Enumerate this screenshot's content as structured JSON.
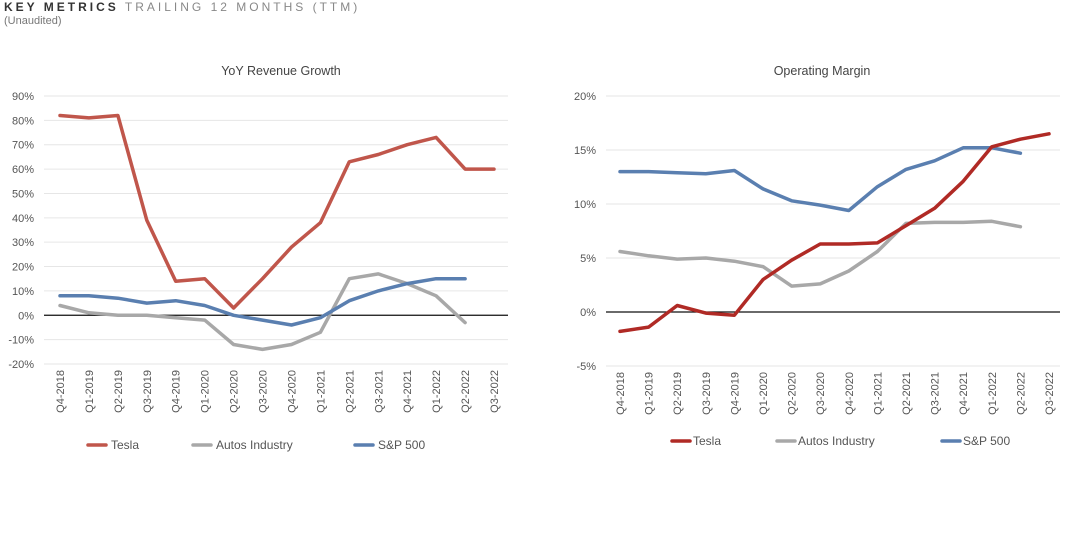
{
  "header": {
    "title_bold": "KEY METRICS",
    "title_light": "TRAILING 12 MONTHS (TTM)",
    "subtitle": "(Unaudited)"
  },
  "colors": {
    "tesla_left": "#c0564b",
    "tesla_right": "#b02a25",
    "autos": "#a8a8a8",
    "sp500": "#5a7fb0",
    "grid": "#e6e6e6",
    "zero": "#111111"
  },
  "chart_data": [
    {
      "type": "line",
      "title": "YoY Revenue Growth",
      "categories": [
        "Q4-2018",
        "Q1-2019",
        "Q2-2019",
        "Q3-2019",
        "Q4-2019",
        "Q1-2020",
        "Q2-2020",
        "Q3-2020",
        "Q4-2020",
        "Q1-2021",
        "Q2-2021",
        "Q3-2021",
        "Q4-2021",
        "Q1-2022",
        "Q2-2022",
        "Q3-2022"
      ],
      "y_ticks": [
        90,
        80,
        70,
        60,
        50,
        40,
        30,
        20,
        10,
        0,
        -10,
        -20
      ],
      "y_tick_labels": [
        "90%",
        "80%",
        "70%",
        "60%",
        "50%",
        "40%",
        "30%",
        "20%",
        "10%",
        "0%",
        "-10%",
        "-20%"
      ],
      "ylim": [
        -20,
        90
      ],
      "grid": true,
      "legend_position": "bottom",
      "series": [
        {
          "name": "Tesla",
          "color": "#c0564b",
          "values": [
            82,
            81,
            82,
            39,
            14,
            15,
            3,
            15,
            28,
            38,
            63,
            66,
            70,
            73,
            60,
            60
          ]
        },
        {
          "name": "Autos Industry",
          "color": "#a8a8a8",
          "values": [
            4,
            1,
            0,
            0,
            -1,
            -2,
            -12,
            -14,
            -12,
            -7,
            15,
            17,
            13,
            8,
            -3,
            null
          ]
        },
        {
          "name": "S&P 500",
          "color": "#5a7fb0",
          "values": [
            8,
            8,
            7,
            5,
            6,
            4,
            0,
            -2,
            -4,
            -1,
            6,
            10,
            13,
            15,
            15,
            null
          ]
        }
      ]
    },
    {
      "type": "line",
      "title": "Operating Margin",
      "categories": [
        "Q4-2018",
        "Q1-2019",
        "Q2-2019",
        "Q3-2019",
        "Q4-2019",
        "Q1-2020",
        "Q2-2020",
        "Q3-2020",
        "Q4-2020",
        "Q1-2021",
        "Q2-2021",
        "Q3-2021",
        "Q4-2021",
        "Q1-2022",
        "Q2-2022",
        "Q3-2022"
      ],
      "y_ticks": [
        20,
        15,
        10,
        5,
        0,
        -5
      ],
      "y_tick_labels": [
        "20%",
        "15%",
        "10%",
        "5%",
        "0%",
        "-5%"
      ],
      "ylim": [
        -5,
        20
      ],
      "grid": true,
      "legend_position": "bottom",
      "series": [
        {
          "name": "Tesla",
          "color": "#b02a25",
          "values": [
            -1.8,
            -1.4,
            0.6,
            -0.1,
            -0.3,
            3.0,
            4.8,
            6.3,
            6.3,
            6.4,
            8.0,
            9.6,
            12.1,
            15.3,
            16.0,
            16.5
          ]
        },
        {
          "name": "Autos Industry",
          "color": "#a8a8a8",
          "values": [
            5.6,
            5.2,
            4.9,
            5.0,
            4.7,
            4.2,
            2.4,
            2.6,
            3.8,
            5.6,
            8.2,
            8.3,
            8.3,
            8.4,
            7.9,
            null
          ]
        },
        {
          "name": "S&P 500",
          "color": "#5a7fb0",
          "values": [
            13.0,
            13.0,
            12.9,
            12.8,
            13.1,
            11.4,
            10.3,
            9.9,
            9.4,
            11.6,
            13.2,
            14.0,
            15.2,
            15.2,
            14.7,
            null
          ]
        }
      ]
    }
  ]
}
